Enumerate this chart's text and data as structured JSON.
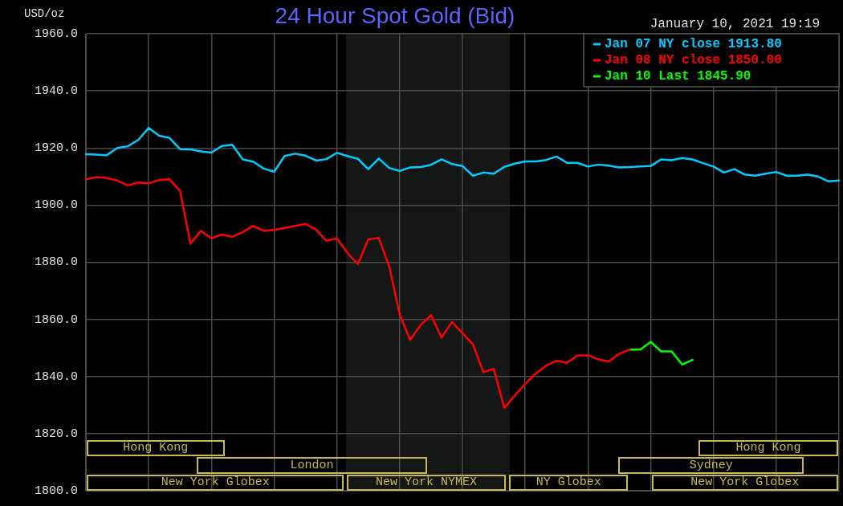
{
  "chart_data": {
    "type": "line",
    "title": "24 Hour Spot Gold (Bid)",
    "subtitle": "January 10, 2021 19:19",
    "ylabel": "USD/oz",
    "categories": [
      null,
      null,
      null,
      null,
      null,
      null,
      null,
      null,
      null,
      null,
      null,
      null,
      null,
      null,
      null,
      null,
      null,
      null,
      null,
      null,
      null,
      null,
      null,
      null,
      null,
      null,
      null,
      null,
      null,
      null,
      null,
      null,
      null,
      null,
      null,
      null,
      null,
      null,
      null,
      null,
      null,
      null,
      null,
      null,
      null,
      null,
      null,
      null,
      null,
      null,
      null,
      null,
      null,
      null,
      null,
      null,
      null,
      null,
      null,
      null,
      null,
      null,
      null,
      null,
      null,
      null,
      null,
      null,
      null,
      null,
      null,
      null,
      null
    ],
    "ylim": [
      1800,
      1960
    ],
    "yticks": [
      {
        "value": 1800,
        "label": "1800.0"
      },
      {
        "value": 1820,
        "label": "1820.0"
      },
      {
        "value": 1840,
        "label": "1840.0"
      },
      {
        "value": 1860,
        "label": "1860.0"
      },
      {
        "value": 1880,
        "label": "1880.0"
      },
      {
        "value": 1900,
        "label": "1900.0"
      },
      {
        "value": 1920,
        "label": "1920.0"
      },
      {
        "value": 1940,
        "label": "1940.0"
      },
      {
        "value": 1960,
        "label": "1960.0"
      }
    ],
    "tick_labels": "y",
    "grid": true,
    "legend": "top right",
    "marker": "none",
    "line_style": "solid",
    "series": [
      {
        "name": "Jan 07 NY close 1913.80",
        "color": "#00ccff",
        "values": [
          1917.8,
          1917.7,
          1917.5,
          1920.0,
          1920.6,
          1922.8,
          1927.0,
          1924.3,
          1923.5,
          1919.6,
          1919.5,
          1918.8,
          1918.4,
          1920.7,
          1921.1,
          1916.0,
          1915.2,
          1912.8,
          1911.7,
          1917.2,
          1918.0,
          1917.3,
          1915.6,
          1916.1,
          1918.3,
          1917.2,
          1916.2,
          1912.6,
          1916.3,
          1913.0,
          1912.0,
          1913.2,
          1913.3,
          1914.1,
          1916.0,
          1914.4,
          1913.7,
          1910.3,
          1911.4,
          1911.0,
          1913.4,
          1914.5,
          1915.3,
          1915.3,
          1915.8,
          1917.0,
          1914.8,
          1914.8,
          1913.5,
          1914.2,
          1913.8,
          1913.2,
          1913.3,
          1913.5,
          1913.7,
          1916.0,
          1915.7,
          1916.5,
          1916.0,
          1914.7,
          1913.5,
          1911.4,
          1912.6,
          1910.7,
          1910.3,
          1911.0,
          1911.6,
          1910.3,
          1910.3,
          1910.7,
          1910.0,
          1908.3,
          1908.6
        ]
      },
      {
        "name": "Jan 08 NY close 1850.00",
        "color": "#ff0000",
        "values": [
          1909.0,
          1909.8,
          1909.5,
          1908.6,
          1906.9,
          1907.9,
          1907.6,
          1908.8,
          1909.0,
          1905.0,
          1886.5,
          1891.0,
          1888.4,
          1889.7,
          1888.9,
          1890.6,
          1892.7,
          1891.0,
          1891.3,
          1892.0,
          1892.7,
          1893.4,
          1891.4,
          1887.5,
          1888.3,
          1883.3,
          1879.3,
          1888.0,
          1888.5,
          1878.5,
          1861.8,
          1852.8,
          1858.0,
          1861.5,
          1853.6,
          1859.1,
          1855.2,
          1851.3,
          1841.5,
          1842.7,
          1829.0,
          1833.3,
          1837.4,
          1841.0,
          1843.8,
          1845.5,
          1844.8,
          1847.4,
          1847.4,
          1846.0,
          1845.3,
          1848.0,
          1849.4,
          null,
          null,
          null,
          null,
          null,
          null,
          null,
          null,
          null,
          null,
          null,
          null,
          null,
          null,
          null,
          null,
          null,
          null,
          null,
          null
        ]
      },
      {
        "name": "Jan 10 Last 1845.90",
        "color": "#00ff00",
        "values": [
          null,
          null,
          null,
          null,
          null,
          null,
          null,
          null,
          null,
          null,
          null,
          null,
          null,
          null,
          null,
          null,
          null,
          null,
          null,
          null,
          null,
          null,
          null,
          null,
          null,
          null,
          null,
          null,
          null,
          null,
          null,
          null,
          null,
          null,
          null,
          null,
          null,
          null,
          null,
          null,
          null,
          null,
          null,
          null,
          null,
          null,
          null,
          null,
          null,
          null,
          null,
          null,
          1849.4,
          1849.4,
          1852.1,
          1848.8,
          1848.8,
          1844.2,
          1845.8,
          null,
          null,
          null,
          null,
          null,
          null,
          null,
          null,
          null,
          null,
          null,
          null,
          null,
          null
        ]
      }
    ],
    "annotations": [
      "Hong Kong",
      "London",
      "New York Globex",
      "New York NYMEX",
      "NY Globex",
      "Hong Kong",
      "Sydney",
      "New York Globex"
    ]
  }
}
